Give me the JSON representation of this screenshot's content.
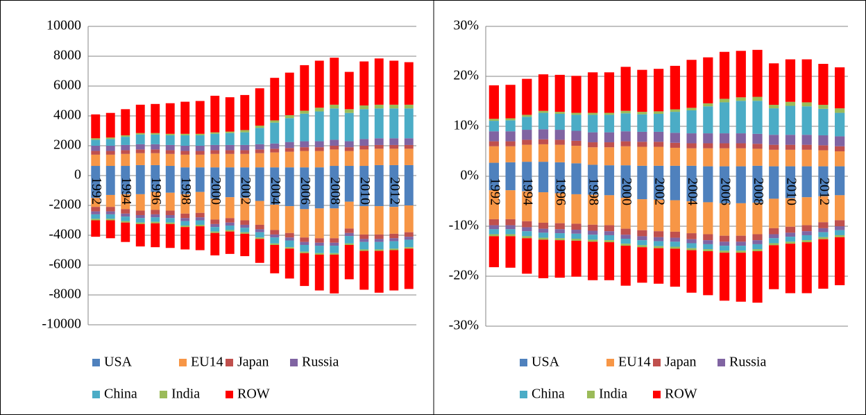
{
  "chart_data": [
    {
      "type": "bar",
      "stacked": true,
      "grid": true,
      "categories": [
        "1992",
        null,
        "1994",
        null,
        "1996",
        null,
        "1998",
        null,
        "2000",
        null,
        "2002",
        null,
        "2004",
        null,
        "2006",
        null,
        "2008",
        null,
        "2010",
        null,
        "2012",
        null
      ],
      "ylim": [
        -10000,
        10000
      ],
      "yticks": [
        -10000,
        -8000,
        -6000,
        -4000,
        -2000,
        0,
        2000,
        4000,
        6000,
        8000,
        10000
      ],
      "series": [
        {
          "name": "USA",
          "color": "#4f81bd",
          "values": [
            650,
            650,
            650,
            700,
            700,
            650,
            550,
            550,
            550,
            550,
            550,
            550,
            550,
            550,
            550,
            550,
            650,
            650,
            650,
            700,
            700,
            700
          ],
          "negative_values": [
            -1500,
            -1300,
            -1250,
            -1250,
            -1100,
            -1150,
            -1250,
            -1100,
            -1550,
            -1450,
            -1500,
            -1700,
            -1950,
            -2050,
            -2250,
            -2200,
            -2200,
            -1750,
            -2050,
            -2050,
            -2100,
            -2000
          ]
        },
        {
          "name": "EU14",
          "color": "#f79646",
          "values": [
            750,
            750,
            800,
            800,
            800,
            800,
            850,
            850,
            900,
            900,
            900,
            950,
            1000,
            1050,
            1100,
            1100,
            1100,
            1000,
            1100,
            1100,
            1100,
            1100
          ],
          "negative_values": [
            -600,
            -800,
            -1000,
            -1100,
            -1200,
            -1200,
            -1300,
            -1400,
            -1400,
            -1400,
            -1500,
            -1600,
            -1700,
            -1800,
            -1900,
            -2000,
            -2000,
            -1800,
            -1900,
            -1900,
            -1800,
            -1800
          ]
        },
        {
          "name": "Japan",
          "color": "#c0504d",
          "values": [
            250,
            250,
            250,
            250,
            250,
            250,
            250,
            250,
            250,
            250,
            250,
            250,
            250,
            250,
            250,
            250,
            250,
            250,
            250,
            250,
            250,
            250
          ],
          "negative_values": [
            -300,
            -300,
            -300,
            -300,
            -300,
            -300,
            -300,
            -300,
            -300,
            -300,
            -300,
            -300,
            -300,
            -300,
            -300,
            -300,
            -300,
            -300,
            -300,
            -300,
            -300,
            -300
          ]
        },
        {
          "name": "Russia",
          "color": "#8064a2",
          "values": [
            350,
            350,
            350,
            350,
            350,
            350,
            350,
            350,
            350,
            350,
            350,
            350,
            350,
            400,
            400,
            400,
            400,
            400,
            450,
            450,
            450,
            450
          ],
          "negative_values": [
            -200,
            -200,
            -200,
            -200,
            -200,
            -200,
            -200,
            -200,
            -200,
            -200,
            -200,
            -200,
            -200,
            -200,
            -200,
            -200,
            -200,
            -200,
            -200,
            -200,
            -200,
            -200
          ]
        },
        {
          "name": "China",
          "color": "#4bacc6",
          "values": [
            400,
            450,
            550,
            650,
            650,
            650,
            700,
            700,
            750,
            800,
            850,
            1100,
            1400,
            1600,
            1850,
            2000,
            2100,
            1900,
            2000,
            2000,
            2000,
            2000
          ],
          "negative_values": [
            -300,
            -300,
            -300,
            -300,
            -300,
            -300,
            -300,
            -300,
            -300,
            -300,
            -300,
            -350,
            -400,
            -450,
            -450,
            -500,
            -500,
            -500,
            -500,
            -500,
            -500,
            -500
          ]
        },
        {
          "name": "India",
          "color": "#9bbb59",
          "values": [
            100,
            100,
            100,
            100,
            100,
            100,
            100,
            100,
            100,
            100,
            150,
            150,
            150,
            200,
            200,
            250,
            250,
            250,
            250,
            250,
            250,
            250
          ],
          "negative_values": [
            -100,
            -100,
            -100,
            -100,
            -100,
            -100,
            -100,
            -100,
            -100,
            -100,
            -100,
            -100,
            -100,
            -100,
            -100,
            -100,
            -100,
            -100,
            -100,
            -100,
            -100,
            -100
          ]
        },
        {
          "name": "ROW",
          "color": "#ff0000",
          "values": [
            1600,
            1650,
            1750,
            1900,
            1950,
            2050,
            2150,
            2200,
            2450,
            2300,
            2350,
            2500,
            2850,
            2850,
            3050,
            3150,
            3150,
            2500,
            2950,
            3100,
            2950,
            2850
          ],
          "negative_values": [
            -1100,
            -1200,
            -1300,
            -1500,
            -1600,
            -1600,
            -1500,
            -1600,
            -1500,
            -1500,
            -1500,
            -1600,
            -1900,
            -2000,
            -2200,
            -2400,
            -2600,
            -2300,
            -2600,
            -2800,
            -2700,
            -2700
          ]
        }
      ]
    },
    {
      "type": "bar",
      "stacked": true,
      "grid": true,
      "categories": [
        "1992",
        null,
        "1994",
        null,
        "1996",
        null,
        "1998",
        null,
        "2000",
        null,
        "2002",
        null,
        "2004",
        null,
        "2006",
        null,
        "2008",
        null,
        "2010",
        null,
        "2012",
        null
      ],
      "ylim": [
        -30,
        30
      ],
      "yticks": [
        {
          "value": -30,
          "label": "-30%"
        },
        {
          "value": -20,
          "label": "-20%"
        },
        {
          "value": -10,
          "label": "-10%"
        },
        {
          "value": 0,
          "label": "0%"
        },
        {
          "value": 10,
          "label": "10%"
        },
        {
          "value": 20,
          "label": "20%"
        },
        {
          "value": 30,
          "label": "30%"
        }
      ],
      "series": [
        {
          "name": "USA",
          "color": "#4f81bd",
          "values": [
            2.7,
            2.8,
            2.9,
            2.9,
            2.8,
            2.6,
            2.3,
            2.2,
            2.2,
            2.1,
            2.1,
            2.1,
            2.1,
            2.0,
            2.0,
            2.0,
            2.1,
            2.0,
            2.0,
            2.0,
            2.0,
            2.0
          ],
          "negative_values": [
            -2.8,
            -2.8,
            -3.0,
            -3.2,
            -3.4,
            -3.6,
            -3.7,
            -3.8,
            -4.3,
            -4.6,
            -4.7,
            -4.8,
            -5.0,
            -5.2,
            -5.4,
            -5.4,
            -5.3,
            -4.5,
            -4.4,
            -4.2,
            -4.0,
            -3.8
          ]
        },
        {
          "name": "EU14",
          "color": "#f79646",
          "values": [
            3.3,
            3.2,
            3.4,
            3.5,
            3.5,
            3.5,
            3.5,
            3.6,
            3.8,
            3.8,
            3.8,
            3.6,
            3.5,
            3.6,
            3.6,
            3.6,
            3.4,
            3.3,
            3.3,
            3.3,
            3.2,
            3.0
          ],
          "negative_values": [
            -5.8,
            -5.8,
            -6.0,
            -6.1,
            -6.0,
            -5.9,
            -6.0,
            -6.0,
            -6.2,
            -6.2,
            -6.3,
            -6.3,
            -6.4,
            -6.4,
            -6.5,
            -6.5,
            -6.3,
            -5.9,
            -5.7,
            -5.6,
            -5.2,
            -5.0
          ]
        },
        {
          "name": "Japan",
          "color": "#c0504d",
          "values": [
            1.0,
            1.0,
            1.0,
            1.0,
            1.0,
            1.0,
            1.0,
            1.0,
            1.0,
            1.0,
            1.0,
            1.0,
            1.0,
            1.0,
            1.0,
            1.0,
            1.0,
            1.0,
            1.0,
            1.0,
            1.0,
            1.0
          ],
          "negative_values": [
            -1.2,
            -1.2,
            -1.2,
            -1.2,
            -1.2,
            -1.2,
            -1.2,
            -1.2,
            -1.2,
            -1.2,
            -1.2,
            -1.2,
            -1.2,
            -1.2,
            -1.2,
            -1.2,
            -1.2,
            -1.2,
            -1.2,
            -1.2,
            -1.2,
            -1.2
          ]
        },
        {
          "name": "Russia",
          "color": "#8064a2",
          "values": [
            2.0,
            2.0,
            2.0,
            2.0,
            2.0,
            2.0,
            2.0,
            2.0,
            2.0,
            2.0,
            2.0,
            2.0,
            2.0,
            2.0,
            2.0,
            2.0,
            2.0,
            2.0,
            2.0,
            2.0,
            2.0,
            2.0
          ],
          "negative_values": [
            -0.8,
            -0.8,
            -0.8,
            -0.8,
            -0.8,
            -0.8,
            -0.8,
            -0.8,
            -0.8,
            -0.8,
            -0.8,
            -0.8,
            -0.8,
            -0.8,
            -0.8,
            -0.8,
            -0.8,
            -0.8,
            -0.8,
            -0.8,
            -0.8,
            -0.8
          ]
        },
        {
          "name": "China",
          "color": "#4bacc6",
          "values": [
            2.1,
            2.2,
            2.6,
            3.3,
            3.2,
            3.2,
            3.5,
            3.5,
            3.6,
            3.5,
            3.6,
            4.2,
            4.6,
            5.4,
            6.2,
            6.5,
            6.6,
            5.3,
            5.8,
            5.7,
            5.3,
            4.7
          ],
          "negative_values": [
            -1.0,
            -1.0,
            -1.0,
            -1.0,
            -1.0,
            -1.0,
            -1.0,
            -1.0,
            -1.0,
            -1.0,
            -1.0,
            -1.0,
            -1.0,
            -1.0,
            -1.0,
            -1.0,
            -1.0,
            -1.0,
            -1.0,
            -1.0,
            -1.0,
            -1.0
          ]
        },
        {
          "name": "India",
          "color": "#9bbb59",
          "values": [
            0.4,
            0.4,
            0.4,
            0.4,
            0.4,
            0.4,
            0.4,
            0.4,
            0.5,
            0.5,
            0.5,
            0.5,
            0.5,
            0.6,
            0.7,
            0.7,
            0.8,
            0.7,
            0.8,
            0.8,
            0.8,
            0.9
          ],
          "negative_values": [
            -0.4,
            -0.4,
            -0.4,
            -0.4,
            -0.4,
            -0.4,
            -0.4,
            -0.4,
            -0.4,
            -0.4,
            -0.4,
            -0.4,
            -0.4,
            -0.4,
            -0.4,
            -0.4,
            -0.4,
            -0.4,
            -0.4,
            -0.4,
            -0.4,
            -0.4
          ]
        },
        {
          "name": "ROW",
          "color": "#ff0000",
          "values": [
            6.7,
            6.7,
            7.2,
            7.3,
            7.4,
            7.4,
            8.1,
            8.1,
            8.8,
            8.4,
            8.5,
            8.7,
            9.6,
            9.2,
            9.4,
            9.3,
            9.4,
            8.3,
            8.5,
            8.6,
            8.2,
            8.2
          ],
          "negative_values": [
            -6.2,
            -6.3,
            -7.1,
            -7.7,
            -7.5,
            -7.2,
            -7.7,
            -7.6,
            -8.0,
            -7.1,
            -7.1,
            -7.6,
            -8.5,
            -8.8,
            -9.6,
            -9.8,
            -10.3,
            -8.8,
            -9.9,
            -10.2,
            -9.9,
            -9.6
          ]
        }
      ]
    }
  ]
}
